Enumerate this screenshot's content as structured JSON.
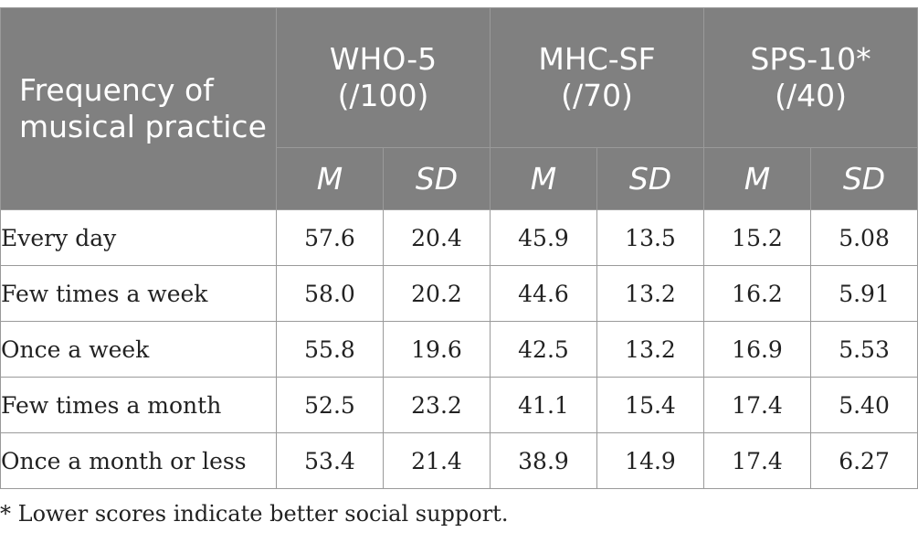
{
  "table": {
    "header": {
      "first": "Frequency of musical practice",
      "groups": [
        {
          "name": "WHO-5",
          "range": "(/100)"
        },
        {
          "name": "MHC-SF",
          "range": "(/70)"
        },
        {
          "name": "SPS-10",
          "marker": "*",
          "range": "(/40)"
        }
      ],
      "sub": [
        "M",
        "SD",
        "M",
        "SD",
        "M",
        "SD"
      ]
    },
    "rows": [
      {
        "label": "Every day",
        "values": [
          "57.6",
          "20.4",
          "45.9",
          "13.5",
          "15.2",
          "5.08"
        ]
      },
      {
        "label": "Few times a week",
        "values": [
          "58.0",
          "20.2",
          "44.6",
          "13.2",
          "16.2",
          "5.91"
        ]
      },
      {
        "label": "Once a week",
        "values": [
          "55.8",
          "19.6",
          "42.5",
          "13.2",
          "16.9",
          "5.53"
        ]
      },
      {
        "label": "Few times a month",
        "values": [
          "52.5",
          "23.2",
          "41.1",
          "15.4",
          "17.4",
          "5.40"
        ]
      },
      {
        "label": "Once a month or less",
        "values": [
          "53.4",
          "21.4",
          "38.9",
          "14.9",
          "17.4",
          "6.27"
        ]
      }
    ]
  },
  "footnote": "* Lower scores indicate better social support."
}
